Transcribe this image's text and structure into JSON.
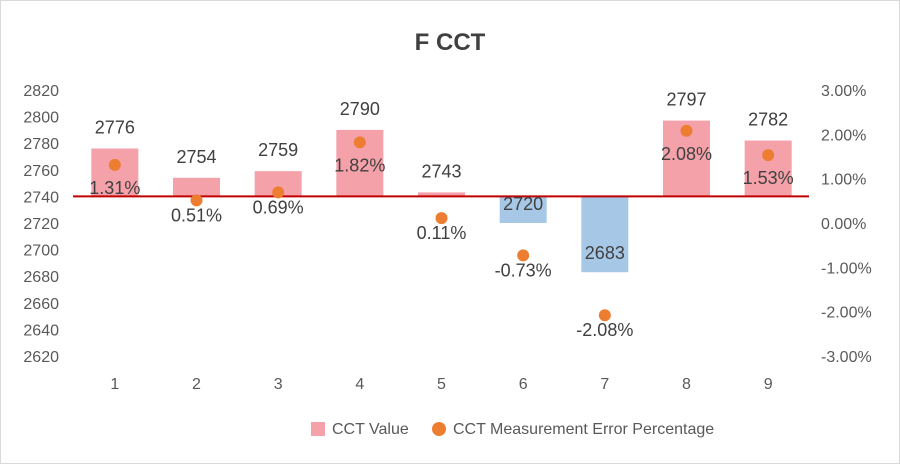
{
  "chart_data": {
    "type": "bar",
    "title": "F CCT",
    "categories": [
      "1",
      "2",
      "3",
      "4",
      "5",
      "6",
      "7",
      "8",
      "9"
    ],
    "reference_value": 2740,
    "series": [
      {
        "name": "CCT Value",
        "type": "bar",
        "axis": "left",
        "values": [
          2776,
          2754,
          2759,
          2790,
          2743,
          2720,
          2683,
          2797,
          2782
        ],
        "labels": [
          "2776",
          "2754",
          "2759",
          "2790",
          "2743",
          "2720",
          "2683",
          "2797",
          "2782"
        ],
        "color_positive": "#f4a1aa",
        "color_negative": "#a7c7e7"
      },
      {
        "name": "CCT Measurement Error Percentage",
        "type": "scatter",
        "axis": "right",
        "values": [
          1.31,
          0.51,
          0.69,
          1.82,
          0.11,
          -0.73,
          -2.08,
          2.08,
          1.53
        ],
        "labels": [
          "1.31%",
          "0.51%",
          "0.69%",
          "1.82%",
          "0.11%",
          "-0.73%",
          "-2.08%",
          "2.08%",
          "1.53%"
        ],
        "color": "#ed7d31"
      }
    ],
    "y_left": {
      "range": [
        2620,
        2820
      ],
      "ticks": [
        "2620",
        "2640",
        "2660",
        "2680",
        "2700",
        "2720",
        "2740",
        "2760",
        "2780",
        "2800",
        "2820"
      ]
    },
    "y_right": {
      "range": [
        -3,
        3
      ],
      "ticks": [
        "-3.00%",
        "-2.00%",
        "-1.00%",
        "0.00%",
        "1.00%",
        "2.00%",
        "3.00%"
      ]
    },
    "grid": false,
    "legend_position": "bottom",
    "reference_line_color": "#c00000"
  }
}
